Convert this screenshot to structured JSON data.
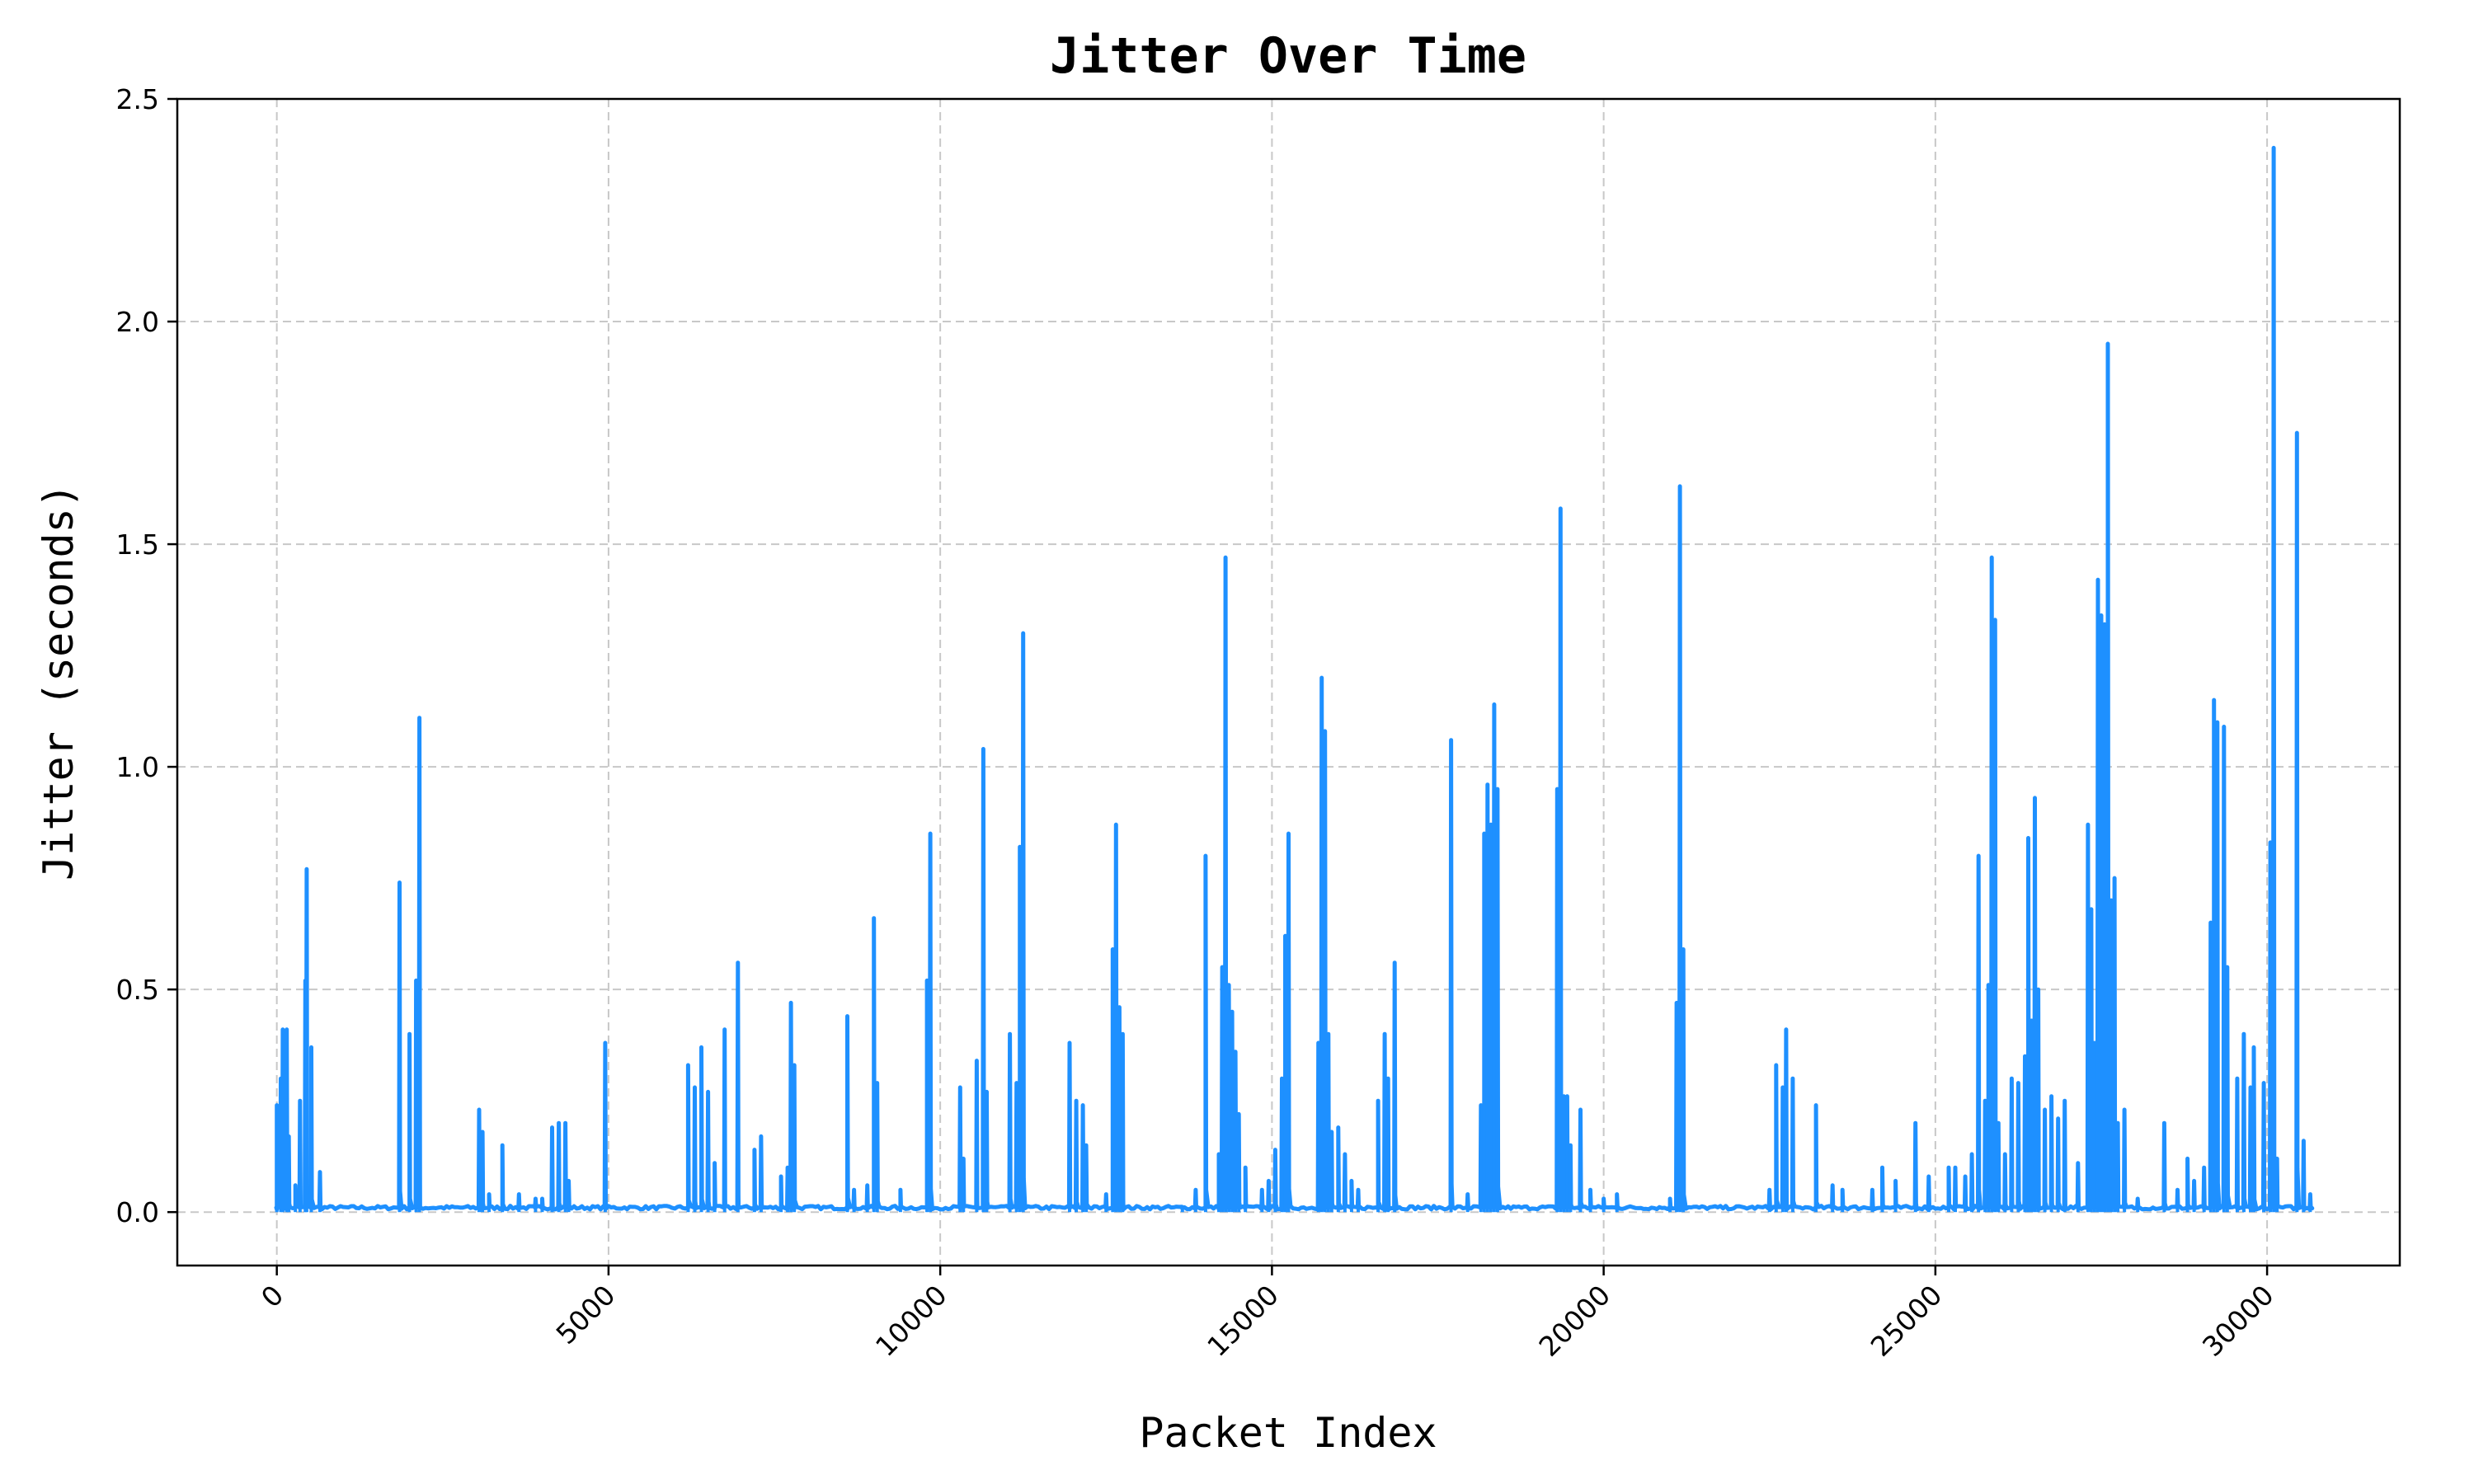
{
  "chart_data": {
    "type": "line",
    "title": "Jitter Over Time",
    "xlabel": "Packet Index",
    "ylabel": "Jitter (seconds)",
    "xlim": [
      -1500,
      32000
    ],
    "ylim": [
      -0.12,
      2.5
    ],
    "xticks": [
      0,
      5000,
      10000,
      15000,
      20000,
      25000,
      30000
    ],
    "xtick_labels": [
      "0",
      "5000",
      "10000",
      "15000",
      "20000",
      "25000",
      "30000"
    ],
    "yticks": [
      0.0,
      0.5,
      1.0,
      1.5,
      2.0,
      2.5
    ],
    "ytick_labels": [
      "0.0",
      "0.5",
      "1.0",
      "1.5",
      "2.0",
      "2.5"
    ],
    "grid": true,
    "series_color": "#1e90ff",
    "x_range": [
      0,
      30700
    ],
    "baseline": 0.01,
    "spikes": [
      [
        0,
        0.24
      ],
      [
        60,
        0.3
      ],
      [
        90,
        0.41
      ],
      [
        150,
        0.41
      ],
      [
        180,
        0.17
      ],
      [
        280,
        0.06
      ],
      [
        350,
        0.25
      ],
      [
        430,
        0.52
      ],
      [
        450,
        0.77
      ],
      [
        520,
        0.37
      ],
      [
        650,
        0.09
      ],
      [
        1850,
        0.74
      ],
      [
        2000,
        0.4
      ],
      [
        2100,
        0.52
      ],
      [
        2150,
        1.11
      ],
      [
        3050,
        0.23
      ],
      [
        3100,
        0.18
      ],
      [
        3200,
        0.04
      ],
      [
        3400,
        0.15
      ],
      [
        3650,
        0.04
      ],
      [
        3900,
        0.03
      ],
      [
        4000,
        0.03
      ],
      [
        4150,
        0.19
      ],
      [
        4250,
        0.2
      ],
      [
        4350,
        0.2
      ],
      [
        4400,
        0.07
      ],
      [
        4950,
        0.38
      ],
      [
        6200,
        0.33
      ],
      [
        6300,
        0.28
      ],
      [
        6400,
        0.37
      ],
      [
        6500,
        0.27
      ],
      [
        6600,
        0.11
      ],
      [
        6750,
        0.41
      ],
      [
        6950,
        0.56
      ],
      [
        7200,
        0.14
      ],
      [
        7300,
        0.17
      ],
      [
        7600,
        0.08
      ],
      [
        7700,
        0.1
      ],
      [
        7750,
        0.47
      ],
      [
        7800,
        0.33
      ],
      [
        8600,
        0.44
      ],
      [
        8700,
        0.05
      ],
      [
        8900,
        0.06
      ],
      [
        9000,
        0.66
      ],
      [
        9050,
        0.29
      ],
      [
        9400,
        0.05
      ],
      [
        9800,
        0.52
      ],
      [
        9850,
        0.85
      ],
      [
        10300,
        0.28
      ],
      [
        10350,
        0.12
      ],
      [
        10550,
        0.34
      ],
      [
        10650,
        1.04
      ],
      [
        10700,
        0.27
      ],
      [
        11050,
        0.4
      ],
      [
        11150,
        0.29
      ],
      [
        11200,
        0.82
      ],
      [
        11250,
        1.3
      ],
      [
        11950,
        0.38
      ],
      [
        12050,
        0.25
      ],
      [
        12150,
        0.24
      ],
      [
        12200,
        0.15
      ],
      [
        12500,
        0.04
      ],
      [
        12600,
        0.59
      ],
      [
        12650,
        0.87
      ],
      [
        12700,
        0.46
      ],
      [
        12750,
        0.4
      ],
      [
        13650,
        0.01
      ],
      [
        13850,
        0.05
      ],
      [
        14000,
        0.8
      ],
      [
        14200,
        0.13
      ],
      [
        14250,
        0.55
      ],
      [
        14300,
        1.47
      ],
      [
        14350,
        0.51
      ],
      [
        14400,
        0.45
      ],
      [
        14450,
        0.36
      ],
      [
        14500,
        0.22
      ],
      [
        14600,
        0.1
      ],
      [
        14850,
        0.05
      ],
      [
        14950,
        0.07
      ],
      [
        15050,
        0.14
      ],
      [
        15150,
        0.3
      ],
      [
        15200,
        0.62
      ],
      [
        15250,
        0.85
      ],
      [
        15700,
        0.38
      ],
      [
        15750,
        1.2
      ],
      [
        15800,
        1.08
      ],
      [
        15850,
        0.4
      ],
      [
        15900,
        0.18
      ],
      [
        16000,
        0.19
      ],
      [
        16100,
        0.13
      ],
      [
        16200,
        0.07
      ],
      [
        16300,
        0.05
      ],
      [
        16600,
        0.25
      ],
      [
        16700,
        0.4
      ],
      [
        16750,
        0.3
      ],
      [
        16850,
        0.56
      ],
      [
        17700,
        1.06
      ],
      [
        17950,
        0.04
      ],
      [
        18150,
        0.24
      ],
      [
        18200,
        0.85
      ],
      [
        18250,
        0.96
      ],
      [
        18300,
        0.87
      ],
      [
        18350,
        1.14
      ],
      [
        18400,
        0.95
      ],
      [
        19300,
        0.95
      ],
      [
        19350,
        1.58
      ],
      [
        19400,
        0.26
      ],
      [
        19450,
        0.26
      ],
      [
        19500,
        0.15
      ],
      [
        19650,
        0.23
      ],
      [
        19800,
        0.05
      ],
      [
        20000,
        0.03
      ],
      [
        20200,
        0.04
      ],
      [
        21000,
        0.03
      ],
      [
        21100,
        0.47
      ],
      [
        21150,
        1.63
      ],
      [
        21200,
        0.59
      ],
      [
        22500,
        0.05
      ],
      [
        22600,
        0.33
      ],
      [
        22700,
        0.28
      ],
      [
        22750,
        0.41
      ],
      [
        22850,
        0.3
      ],
      [
        23200,
        0.24
      ],
      [
        23450,
        0.06
      ],
      [
        23600,
        0.05
      ],
      [
        24050,
        0.05
      ],
      [
        24200,
        0.1
      ],
      [
        24400,
        0.07
      ],
      [
        24700,
        0.2
      ],
      [
        24900,
        0.08
      ],
      [
        25200,
        0.1
      ],
      [
        25300,
        0.1
      ],
      [
        25450,
        0.08
      ],
      [
        25550,
        0.13
      ],
      [
        25650,
        0.8
      ],
      [
        25750,
        0.25
      ],
      [
        25800,
        0.51
      ],
      [
        25850,
        1.47
      ],
      [
        25900,
        1.33
      ],
      [
        25950,
        0.2
      ],
      [
        26050,
        0.13
      ],
      [
        26150,
        0.3
      ],
      [
        26250,
        0.29
      ],
      [
        26350,
        0.35
      ],
      [
        26400,
        0.84
      ],
      [
        26450,
        0.43
      ],
      [
        26500,
        0.93
      ],
      [
        26550,
        0.5
      ],
      [
        26650,
        0.23
      ],
      [
        26750,
        0.26
      ],
      [
        26850,
        0.21
      ],
      [
        26950,
        0.25
      ],
      [
        27150,
        0.11
      ],
      [
        27300,
        0.87
      ],
      [
        27350,
        0.68
      ],
      [
        27400,
        0.38
      ],
      [
        27450,
        1.42
      ],
      [
        27500,
        1.34
      ],
      [
        27550,
        1.32
      ],
      [
        27600,
        1.95
      ],
      [
        27650,
        0.7
      ],
      [
        27700,
        0.75
      ],
      [
        27750,
        0.2
      ],
      [
        27850,
        0.23
      ],
      [
        28050,
        0.03
      ],
      [
        28450,
        0.2
      ],
      [
        28650,
        0.05
      ],
      [
        28800,
        0.12
      ],
      [
        28900,
        0.07
      ],
      [
        29050,
        0.1
      ],
      [
        29150,
        0.65
      ],
      [
        29200,
        1.15
      ],
      [
        29250,
        1.1
      ],
      [
        29350,
        1.09
      ],
      [
        29400,
        0.55
      ],
      [
        29550,
        0.3
      ],
      [
        29650,
        0.4
      ],
      [
        29750,
        0.28
      ],
      [
        29800,
        0.37
      ],
      [
        29950,
        0.29
      ],
      [
        30050,
        0.83
      ],
      [
        30100,
        2.39
      ],
      [
        30150,
        0.12
      ],
      [
        30450,
        1.75
      ],
      [
        30550,
        0.16
      ],
      [
        30650,
        0.04
      ]
    ]
  }
}
